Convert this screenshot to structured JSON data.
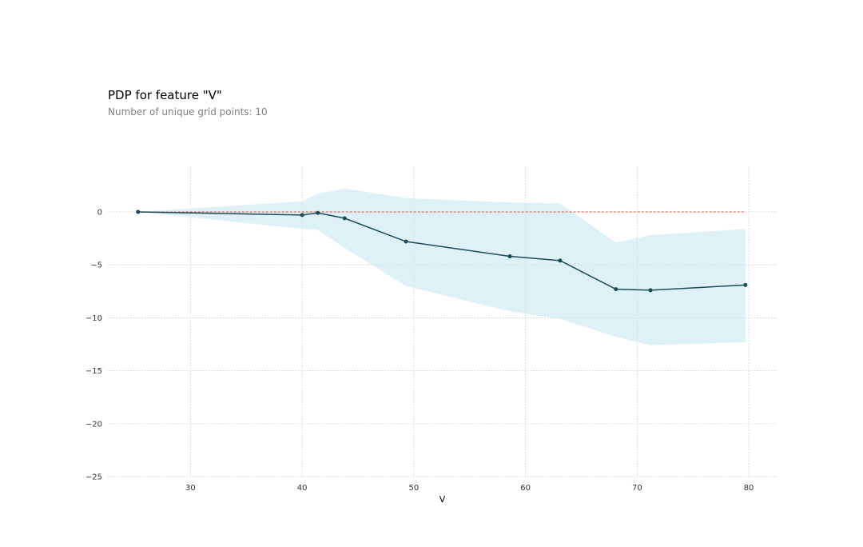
{
  "chart_data": {
    "type": "line",
    "title": "PDP for feature \"V\"",
    "subtitle": "Number of unique grid points: 10",
    "xlabel": "V",
    "ylabel": "",
    "xlim": [
      22.6,
      82.5
    ],
    "ylim": [
      -25,
      4.3
    ],
    "x_ticks": [
      30,
      40,
      50,
      60,
      70,
      80
    ],
    "y_ticks": [
      0,
      -5,
      -10,
      -15,
      -20,
      -25
    ],
    "x_tick_labels": [
      "30",
      "40",
      "50",
      "60",
      "70",
      "80"
    ],
    "y_tick_labels": [
      "0",
      "−5",
      "−10",
      "−15",
      "−20",
      "−25"
    ],
    "grid": true,
    "reference_line_y": 0,
    "series": [
      {
        "x": [
          25.3,
          40.0,
          41.4,
          43.8,
          49.3,
          58.6,
          63.1,
          68.1,
          71.2,
          79.7
        ],
        "y": [
          0.0,
          -0.3,
          -0.1,
          -0.6,
          -2.8,
          -4.2,
          -4.6,
          -7.3,
          -7.4,
          -6.9
        ],
        "band_upper": [
          0.0,
          1.0,
          1.7,
          2.2,
          1.3,
          0.9,
          0.8,
          -2.9,
          -2.2,
          -1.6
        ],
        "band_lower": [
          0.0,
          -1.6,
          -1.7,
          -3.4,
          -7.0,
          -9.4,
          -10.1,
          -11.8,
          -12.6,
          -12.3
        ]
      }
    ],
    "colors": {
      "line": "#1c4b56",
      "marker": "#1c4b56",
      "band": "#cde9f3",
      "reference": "#d45a4a",
      "grid": "#cccccc"
    }
  }
}
